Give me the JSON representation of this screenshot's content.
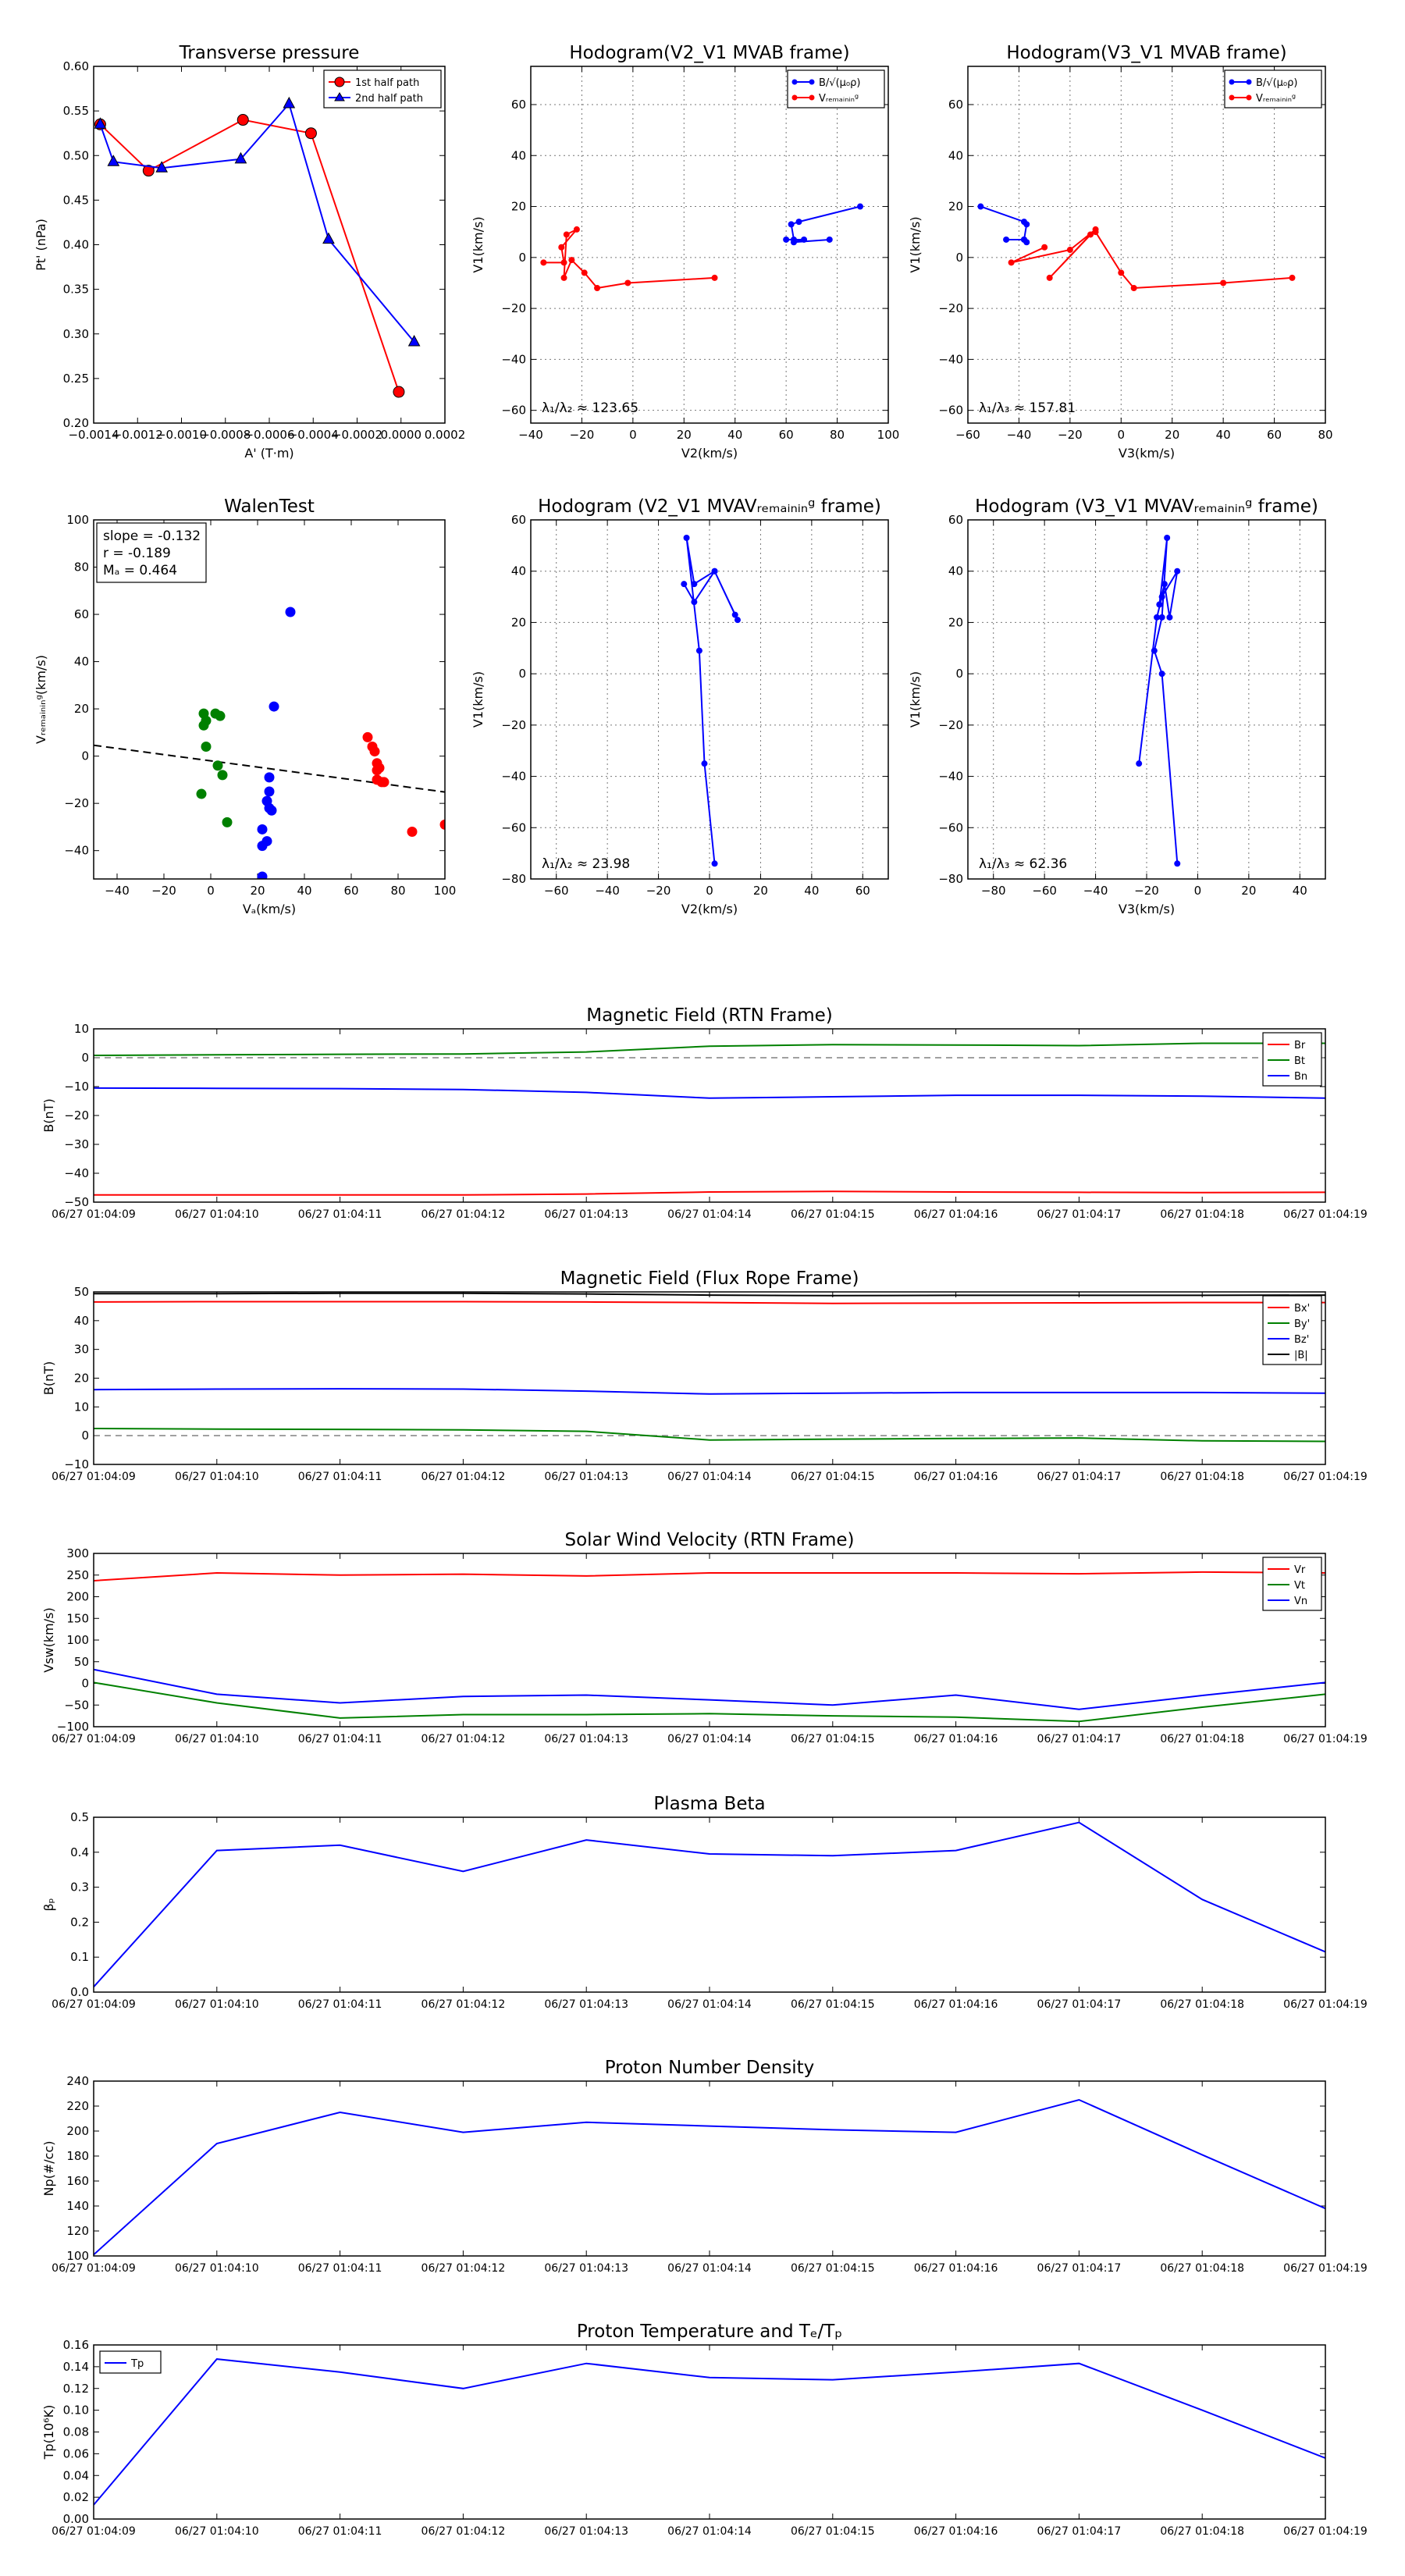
{
  "chart_data": [
    {
      "id": "tp",
      "type": "line",
      "title": "Transverse pressure",
      "xlabel": "A' (T·m)",
      "ylabel": "Pt' (nPa)",
      "xlim": [
        -0.0014,
        0.0002
      ],
      "ylim": [
        0.2,
        0.6
      ],
      "xticks": [
        -0.0014,
        -0.0012,
        -0.001,
        -0.0008,
        -0.0006,
        -0.0004,
        -0.0002,
        0,
        0.0002
      ],
      "xtick_labels": [
        "−0.0014",
        "−0.0012",
        "−0.0010",
        "−0.0008",
        "−0.0006",
        "−0.0004",
        "−0.0002",
        "0.0000",
        "0.0002"
      ],
      "yticks": [
        0.2,
        0.25,
        0.3,
        0.35,
        0.4,
        0.45,
        0.5,
        0.55,
        0.6
      ],
      "ytick_labels": [
        "0.20",
        "0.25",
        "0.30",
        "0.35",
        "0.40",
        "0.45",
        "0.50",
        "0.55",
        "0.60"
      ],
      "legend": "top-right",
      "series": [
        {
          "name": "1st half path",
          "color": "#ff0000",
          "marker": "circle",
          "x": [
            -0.00137,
            -0.00115,
            -0.00072,
            -0.00041,
            -1e-05
          ],
          "y": [
            0.535,
            0.483,
            0.54,
            0.525,
            0.235
          ]
        },
        {
          "name": "2nd half path",
          "color": "#0000ff",
          "marker": "triangle",
          "x": [
            -0.00137,
            -0.00131,
            -0.00109,
            -0.00073,
            -0.00051,
            -0.00033,
            6e-05
          ],
          "y": [
            0.535,
            0.493,
            0.486,
            0.496,
            0.558,
            0.406,
            0.291
          ]
        }
      ]
    },
    {
      "id": "h1",
      "type": "line",
      "title": "Hodogram(V2_V1 MVAB frame)",
      "xlabel": "V2(km/s)",
      "ylabel": "V1(km/s)",
      "xlim": [
        -40,
        100
      ],
      "ylim": [
        -65,
        75
      ],
      "xticks": [
        -40,
        -20,
        0,
        20,
        40,
        60,
        80,
        100
      ],
      "yticks": [
        -60,
        -40,
        -20,
        0,
        20,
        40,
        60
      ],
      "grid": true,
      "legend": "top-right",
      "annotation": "λ₁/λ₂ ≈ 123.65",
      "series": [
        {
          "name": "B/√(μ₀ρ)",
          "color": "#0000ff",
          "x": [
            89,
            65,
            62,
            63,
            60,
            67,
            63,
            77
          ],
          "y": [
            20,
            14,
            13,
            7,
            7,
            7,
            6,
            7
          ]
        },
        {
          "name": "Vᵣₑₘₐᵢₙᵢₙᵍ",
          "color": "#ff0000",
          "x": [
            32,
            -2,
            -14,
            -19,
            -24,
            -27,
            -26,
            -22,
            -28,
            -27,
            -35
          ],
          "y": [
            -8,
            -10,
            -12,
            -6,
            -1,
            -8,
            9,
            11,
            4,
            -2,
            -2
          ]
        }
      ]
    },
    {
      "id": "h2",
      "type": "line",
      "title": "Hodogram(V3_V1 MVAB frame)",
      "xlabel": "V3(km/s)",
      "ylabel": "V1(km/s)",
      "xlim": [
        -60,
        80
      ],
      "ylim": [
        -65,
        75
      ],
      "xticks": [
        -60,
        -40,
        -20,
        0,
        20,
        40,
        60,
        80
      ],
      "yticks": [
        -60,
        -40,
        -20,
        0,
        20,
        40,
        60
      ],
      "grid": true,
      "legend": "top-right",
      "annotation": "λ₁/λ₃ ≈ 157.81",
      "series": [
        {
          "name": "B/√(μ₀ρ)",
          "color": "#0000ff",
          "x": [
            -55,
            -38,
            -37,
            -38,
            -45,
            -38,
            -37
          ],
          "y": [
            20,
            14,
            13,
            7,
            7,
            7,
            6
          ]
        },
        {
          "name": "Vᵣₑₘₐᵢₙᵢₙᵍ",
          "color": "#ff0000",
          "x": [
            67,
            40,
            5,
            0,
            -10,
            -12,
            -28,
            -10,
            -20,
            -43,
            -30
          ],
          "y": [
            -8,
            -10,
            -12,
            -6,
            10,
            9,
            -8,
            11,
            3,
            -2,
            4
          ]
        }
      ]
    },
    {
      "id": "walen",
      "type": "scatter",
      "title": "WalenTest",
      "xlabel": "Vₐ(km/s)",
      "ylabel": "Vᵣₑₘₐᵢₙᵢₙᵍ(km/s)",
      "xlim": [
        -50,
        100
      ],
      "ylim": [
        -52,
        100
      ],
      "xticks": [
        -40,
        -20,
        0,
        20,
        40,
        60,
        80,
        100
      ],
      "yticks": [
        -40,
        -20,
        0,
        20,
        40,
        60,
        80,
        100
      ],
      "stats": [
        "slope = -0.132",
        "r = -0.189",
        "Mₐ = 0.464"
      ],
      "fit_line": {
        "x": [
          -50,
          100
        ],
        "y": [
          4.6,
          -15.2
        ]
      },
      "series": [
        {
          "name": "green",
          "color": "#008000",
          "x": [
            -3,
            -2,
            -3,
            -2,
            2,
            4,
            3,
            -4,
            5,
            7
          ],
          "y": [
            18,
            15,
            13,
            4,
            18,
            17,
            -4,
            -16,
            -8,
            -28
          ]
        },
        {
          "name": "blue",
          "color": "#0000ff",
          "x": [
            34,
            27,
            25,
            25,
            24,
            25,
            26,
            22,
            24,
            22,
            22
          ],
          "y": [
            61,
            21,
            -9,
            -15,
            -19,
            -22,
            -23,
            -31,
            -36,
            -38,
            -51
          ]
        },
        {
          "name": "red",
          "color": "#ff0000",
          "x": [
            67,
            69,
            70,
            71,
            72,
            71,
            71,
            73,
            74,
            86,
            100
          ],
          "y": [
            8,
            4,
            2,
            -3,
            -5,
            -6,
            -10,
            -11,
            -11,
            -32,
            -29
          ]
        }
      ]
    },
    {
      "id": "h3",
      "type": "line",
      "title": "Hodogram (V2_V1 MVAVᵣₑₘₐᵢₙᵢₙᵍ frame)",
      "xlabel": "V2(km/s)",
      "ylabel": "V1(km/s)",
      "xlim": [
        -70,
        70
      ],
      "ylim": [
        -80,
        60
      ],
      "xticks": [
        -60,
        -40,
        -20,
        0,
        20,
        40,
        60
      ],
      "yticks": [
        -80,
        -60,
        -40,
        -20,
        0,
        20,
        40,
        60
      ],
      "grid": true,
      "annotation": "λ₁/λ₂ ≈ 23.98",
      "series": [
        {
          "name": "V",
          "color": "#0000ff",
          "x": [
            2,
            -2,
            -4,
            -9,
            -6,
            2,
            11,
            10,
            2,
            -6,
            -10
          ],
          "y": [
            -74,
            -35,
            9,
            53,
            35,
            40,
            21,
            23,
            40,
            28,
            35
          ]
        }
      ]
    },
    {
      "id": "h4",
      "type": "line",
      "title": "Hodogram (V3_V1 MVAVᵣₑₘₐᵢₙᵢₙᵍ frame)",
      "xlabel": "V3(km/s)",
      "ylabel": "V1(km/s)",
      "xlim": [
        -90,
        50
      ],
      "ylim": [
        -80,
        60
      ],
      "xticks": [
        -80,
        -60,
        -40,
        -20,
        0,
        20,
        40
      ],
      "yticks": [
        -80,
        -60,
        -40,
        -20,
        0,
        20,
        40,
        60
      ],
      "grid": true,
      "annotation": "λ₁/λ₃ ≈ 62.36",
      "series": [
        {
          "name": "V",
          "color": "#0000ff",
          "x": [
            -8,
            -14,
            -17,
            -14,
            -12,
            -15,
            -13,
            -11,
            -8,
            -14,
            -16,
            -23
          ],
          "y": [
            -74,
            0,
            9,
            22,
            53,
            27,
            35,
            22,
            40,
            30,
            22,
            -35
          ]
        }
      ]
    },
    {
      "id": "brtn",
      "type": "line",
      "title": "Magnetic Field (RTN Frame)",
      "ylabel": "B(nT)",
      "ylim": [
        -50,
        10
      ],
      "yticks": [
        -50,
        -40,
        -30,
        -20,
        -10,
        0,
        10
      ],
      "categories": [
        "06/27 01:04:09",
        "06/27 01:04:10",
        "06/27 01:04:11",
        "06/27 01:04:12",
        "06/27 01:04:13",
        "06/27 01:04:14",
        "06/27 01:04:15",
        "06/27 01:04:16",
        "06/27 01:04:17",
        "06/27 01:04:18",
        "06/27 01:04:19"
      ],
      "zero_line": true,
      "legend": "top-right",
      "series": [
        {
          "name": "Br",
          "color": "#ff0000",
          "values": [
            -47.5,
            -47.5,
            -47.5,
            -47.5,
            -47.2,
            -46.5,
            -46.3,
            -46.5,
            -46.6,
            -46.7,
            -46.6
          ]
        },
        {
          "name": "Bt",
          "color": "#008000",
          "values": [
            0.8,
            1.0,
            1.2,
            1.3,
            2.0,
            4.0,
            4.5,
            4.4,
            4.2,
            5.0,
            5.0
          ]
        },
        {
          "name": "Bn",
          "color": "#0000ff",
          "values": [
            -10.5,
            -10.6,
            -10.7,
            -11.0,
            -12.0,
            -14.0,
            -13.5,
            -13.0,
            -13.0,
            -13.3,
            -14.0
          ]
        }
      ]
    },
    {
      "id": "bfr",
      "type": "line",
      "title": "Magnetic Field (Flux Rope Frame)",
      "ylabel": "B(nT)",
      "ylim": [
        -10,
        50
      ],
      "yticks": [
        -10,
        0,
        10,
        20,
        30,
        40,
        50
      ],
      "categories": [
        "06/27 01:04:09",
        "06/27 01:04:10",
        "06/27 01:04:11",
        "06/27 01:04:12",
        "06/27 01:04:13",
        "06/27 01:04:14",
        "06/27 01:04:15",
        "06/27 01:04:16",
        "06/27 01:04:17",
        "06/27 01:04:18",
        "06/27 01:04:19"
      ],
      "zero_line": true,
      "legend": "top-right",
      "series": [
        {
          "name": "Bx'",
          "color": "#ff0000",
          "values": [
            46.5,
            46.6,
            46.6,
            46.6,
            46.5,
            46.3,
            46.0,
            46.1,
            46.2,
            46.3,
            46.3
          ]
        },
        {
          "name": "By'",
          "color": "#008000",
          "values": [
            2.5,
            2.3,
            2.2,
            2.0,
            1.5,
            -1.5,
            -1.2,
            -1.0,
            -0.8,
            -1.8,
            -2.0
          ]
        },
        {
          "name": "Bz'",
          "color": "#0000ff",
          "values": [
            16.0,
            16.2,
            16.3,
            16.2,
            15.5,
            14.5,
            14.8,
            15.0,
            15.0,
            15.0,
            14.8
          ]
        },
        {
          "name": "|B|",
          "color": "#000000",
          "values": [
            49.4,
            49.4,
            49.5,
            49.5,
            49.3,
            48.9,
            48.7,
            48.8,
            48.8,
            48.8,
            48.9
          ]
        }
      ]
    },
    {
      "id": "vrtn",
      "type": "line",
      "title": "Solar Wind Velocity (RTN Frame)",
      "ylabel": "Vsw(km/s)",
      "ylim": [
        -100,
        300
      ],
      "yticks": [
        -100,
        -50,
        0,
        50,
        100,
        150,
        200,
        250,
        300
      ],
      "categories": [
        "06/27 01:04:09",
        "06/27 01:04:10",
        "06/27 01:04:11",
        "06/27 01:04:12",
        "06/27 01:04:13",
        "06/27 01:04:14",
        "06/27 01:04:15",
        "06/27 01:04:16",
        "06/27 01:04:17",
        "06/27 01:04:18",
        "06/27 01:04:19"
      ],
      "legend": "top-right",
      "series": [
        {
          "name": "Vr",
          "color": "#ff0000",
          "values": [
            237,
            255,
            250,
            252,
            248,
            255,
            255,
            255,
            253,
            257,
            255
          ]
        },
        {
          "name": "Vt",
          "color": "#008000",
          "values": [
            2,
            -45,
            -80,
            -72,
            -72,
            -70,
            -75,
            -78,
            -88,
            -55,
            -25
          ]
        },
        {
          "name": "Vn",
          "color": "#0000ff",
          "values": [
            32,
            -25,
            -45,
            -30,
            -27,
            -38,
            -50,
            -27,
            -60,
            -28,
            2
          ]
        }
      ]
    },
    {
      "id": "beta",
      "type": "line",
      "title": "Plasma Beta",
      "ylabel": "βₚ",
      "ylim": [
        0,
        0.5
      ],
      "yticks": [
        0,
        0.1,
        0.2,
        0.3,
        0.4,
        0.5
      ],
      "ytick_labels": [
        "0.0",
        "0.1",
        "0.2",
        "0.3",
        "0.4",
        "0.5"
      ],
      "categories": [
        "06/27 01:04:09",
        "06/27 01:04:10",
        "06/27 01:04:11",
        "06/27 01:04:12",
        "06/27 01:04:13",
        "06/27 01:04:14",
        "06/27 01:04:15",
        "06/27 01:04:16",
        "06/27 01:04:17",
        "06/27 01:04:18",
        "06/27 01:04:19"
      ],
      "series": [
        {
          "name": "beta",
          "color": "#0000ff",
          "values": [
            0.015,
            0.405,
            0.42,
            0.345,
            0.435,
            0.395,
            0.39,
            0.405,
            0.485,
            0.265,
            0.115
          ]
        }
      ]
    },
    {
      "id": "np",
      "type": "line",
      "title": "Proton Number Density",
      "ylabel": "Np(#/cc)",
      "ylim": [
        100,
        240
      ],
      "yticks": [
        100,
        120,
        140,
        160,
        180,
        200,
        220,
        240
      ],
      "categories": [
        "06/27 01:04:09",
        "06/27 01:04:10",
        "06/27 01:04:11",
        "06/27 01:04:12",
        "06/27 01:04:13",
        "06/27 01:04:14",
        "06/27 01:04:15",
        "06/27 01:04:16",
        "06/27 01:04:17",
        "06/27 01:04:18",
        "06/27 01:04:19"
      ],
      "series": [
        {
          "name": "Np",
          "color": "#0000ff",
          "values": [
            101,
            190,
            215,
            199,
            207,
            204,
            201,
            199,
            225,
            181,
            138
          ]
        }
      ]
    },
    {
      "id": "tp2",
      "type": "line",
      "title": "Proton Temperature and Tₑ/Tₚ",
      "ylabel": "Tp(10⁶K)",
      "ylim": [
        0,
        0.16
      ],
      "yticks": [
        0,
        0.02,
        0.04,
        0.06,
        0.08,
        0.1,
        0.12,
        0.14,
        0.16
      ],
      "ytick_labels": [
        "0.00",
        "0.02",
        "0.04",
        "0.06",
        "0.08",
        "0.10",
        "0.12",
        "0.14",
        "0.16"
      ],
      "categories": [
        "06/27 01:04:09",
        "06/27 01:04:10",
        "06/27 01:04:11",
        "06/27 01:04:12",
        "06/27 01:04:13",
        "06/27 01:04:14",
        "06/27 01:04:15",
        "06/27 01:04:16",
        "06/27 01:04:17",
        "06/27 01:04:18",
        "06/27 01:04:19"
      ],
      "legend": "top-left",
      "series": [
        {
          "name": "Tp",
          "color": "#0000ff",
          "values": [
            0.013,
            0.147,
            0.135,
            0.12,
            0.143,
            0.13,
            0.128,
            0.135,
            0.143,
            0.1,
            0.056
          ]
        }
      ]
    }
  ]
}
